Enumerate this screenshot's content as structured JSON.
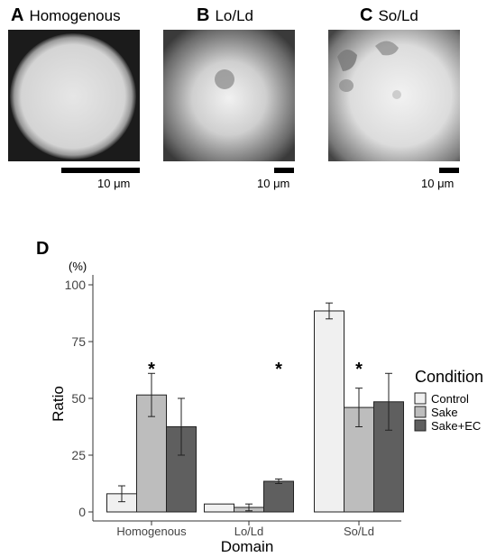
{
  "panels": {
    "a": {
      "letter": "A",
      "title": "Homogenous",
      "scale_label": "10 μm"
    },
    "b": {
      "letter": "B",
      "title": "Lo/Ld",
      "scale_label": "10 μm"
    },
    "c": {
      "letter": "C",
      "title": "So/Ld",
      "scale_label": "10 μm"
    },
    "d": {
      "letter": "D"
    }
  },
  "chart_data": {
    "type": "bar",
    "categories": [
      "Homogenous",
      "Lo/Ld",
      "So/Ld"
    ],
    "series": [
      {
        "name": "Control",
        "color": "#f0f0f0",
        "values": [
          8,
          3.5,
          88.5
        ],
        "errors": [
          3.5,
          0,
          3.5
        ]
      },
      {
        "name": "Sake",
        "color": "#bdbdbd",
        "values": [
          51.5,
          2,
          46
        ],
        "errors": [
          9.5,
          1.5,
          8.5
        ]
      },
      {
        "name": "Sake+EC",
        "color": "#5f5f5f",
        "values": [
          37.5,
          13.5,
          48.5
        ],
        "errors": [
          12.5,
          1,
          12.5
        ]
      }
    ],
    "significance": [
      {
        "category": "Homogenous",
        "series": "Sake",
        "label": "*"
      },
      {
        "category": "Lo/Ld",
        "series": "Sake+EC",
        "label": "*"
      },
      {
        "category": "So/Ld",
        "series": "Sake",
        "label": "*"
      }
    ],
    "xlabel": "Domain",
    "ylabel": "Ratio",
    "y_unit": "(%)",
    "ylim": [
      0,
      100
    ],
    "yticks": [
      0,
      25,
      50,
      75,
      100
    ],
    "legend_title": "Condition",
    "legend_position": "right",
    "grid": false
  }
}
